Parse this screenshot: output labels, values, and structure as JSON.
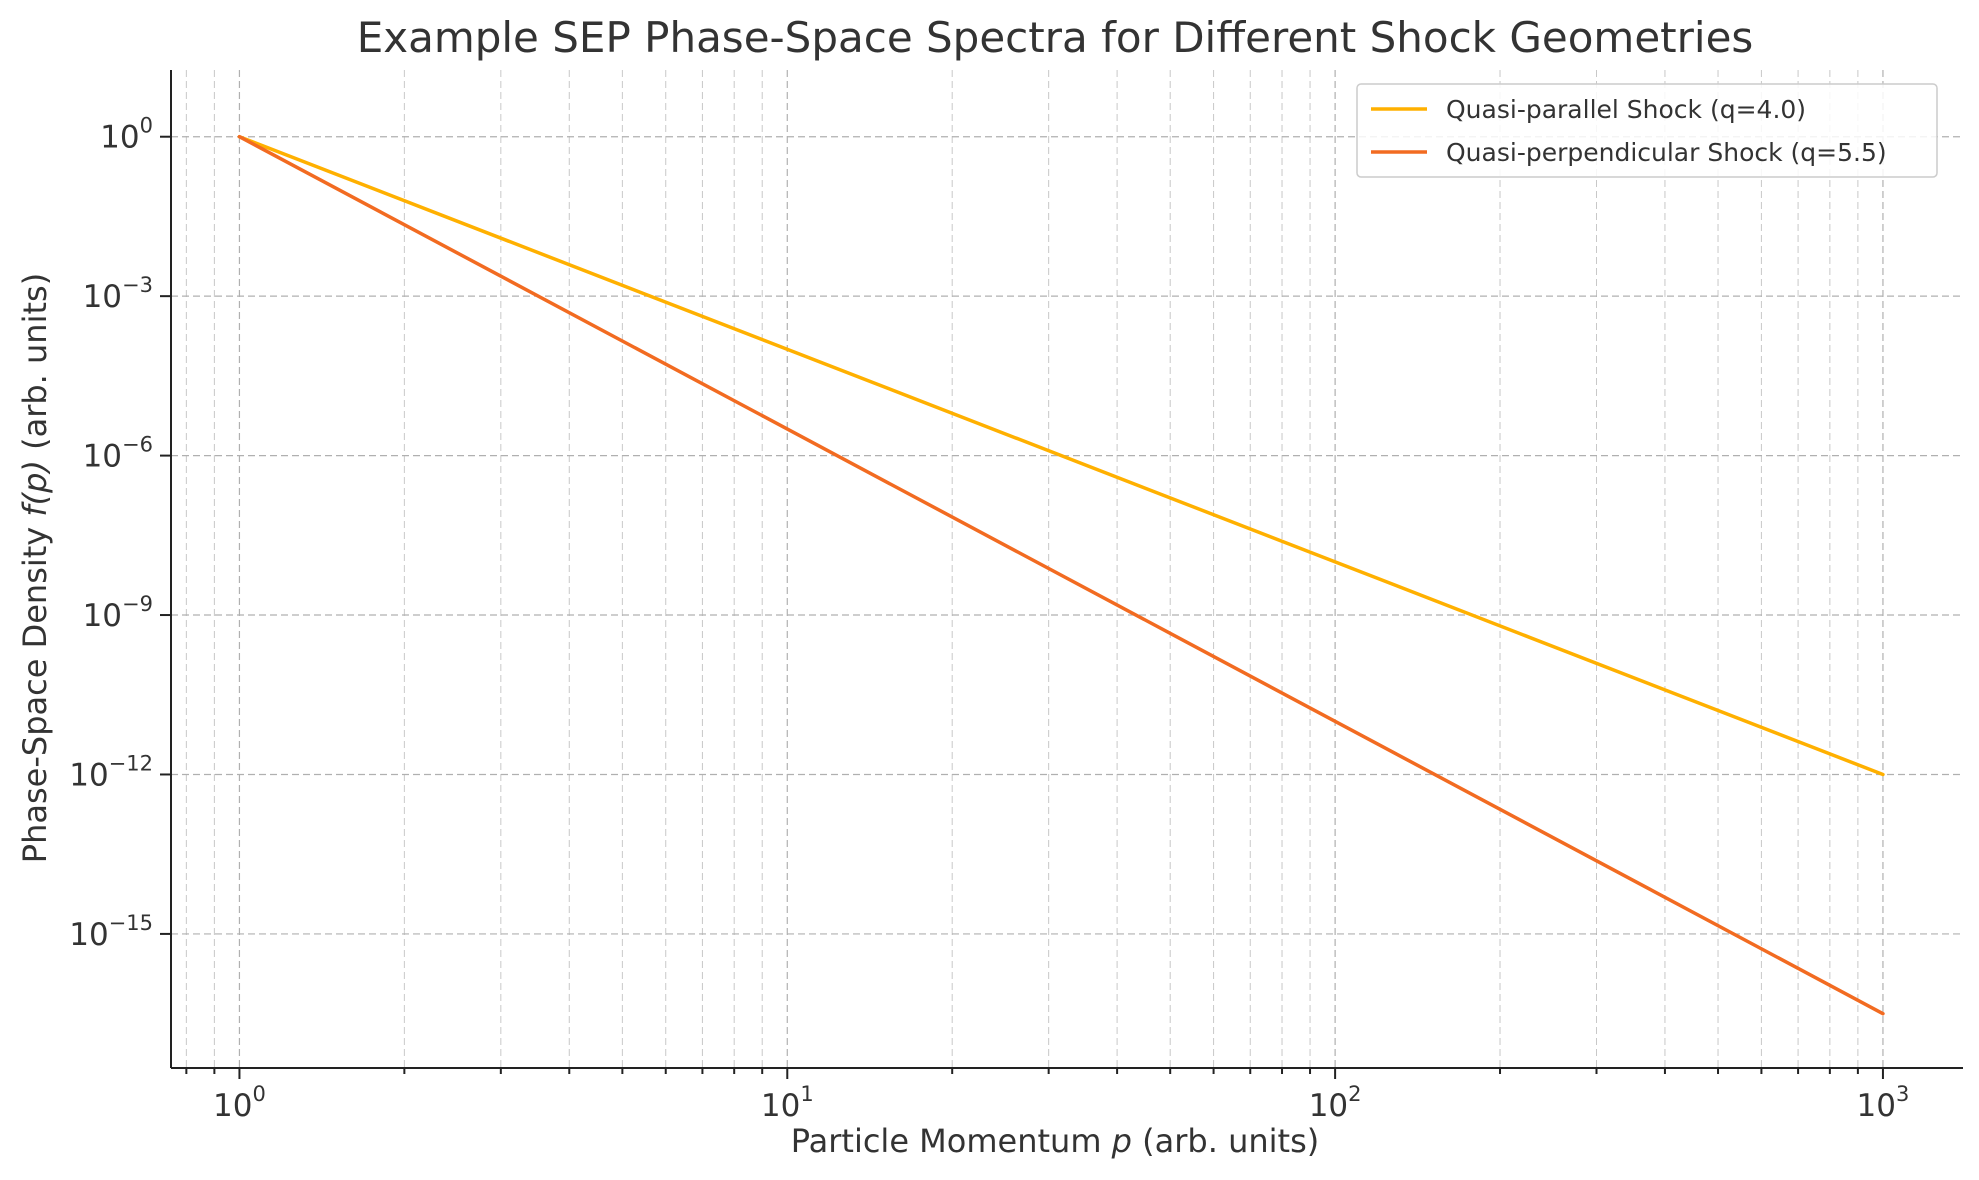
{
  "chart_data": {
    "type": "line",
    "title": "Example SEP Phase-Space Spectra for Different Shock Geometries",
    "xlabel": {
      "prefix": "Particle Momentum ",
      "symbol": "p",
      "suffix": " (arb. units)"
    },
    "ylabel": {
      "prefix": "Phase-Space Density ",
      "symbol": "f(p)",
      "suffix": " (arb. units)"
    },
    "xscale": "log",
    "yscale": "log",
    "xlim": [
      0.75,
      1400
    ],
    "ylim": [
      3e-18,
      18
    ],
    "x_ticks": [
      {
        "value": 1,
        "base": "10",
        "exp": "0"
      },
      {
        "value": 10,
        "base": "10",
        "exp": "1"
      },
      {
        "value": 100,
        "base": "10",
        "exp": "2"
      },
      {
        "value": 1000,
        "base": "10",
        "exp": "3"
      }
    ],
    "y_ticks": [
      {
        "value": 1,
        "base": "10",
        "exp": "0"
      },
      {
        "value": 0.001,
        "base": "10",
        "exp": "−3"
      },
      {
        "value": 1e-06,
        "base": "10",
        "exp": "−6"
      },
      {
        "value": 1e-09,
        "base": "10",
        "exp": "−9"
      },
      {
        "value": 1e-12,
        "base": "10",
        "exp": "−12"
      },
      {
        "value": 1e-15,
        "base": "10",
        "exp": "−15"
      }
    ],
    "grid": true,
    "legend_position": "top-right",
    "series": [
      {
        "name": "Quasi-parallel Shock (q=4.0)",
        "color": "#FFB000",
        "x": [
          1,
          1000
        ],
        "y": [
          1,
          1e-12
        ]
      },
      {
        "name": "Quasi-perpendicular Shock (q=5.5)",
        "color": "#F26B21",
        "x": [
          1,
          1000
        ],
        "y": [
          1,
          3.16e-17
        ]
      }
    ]
  }
}
